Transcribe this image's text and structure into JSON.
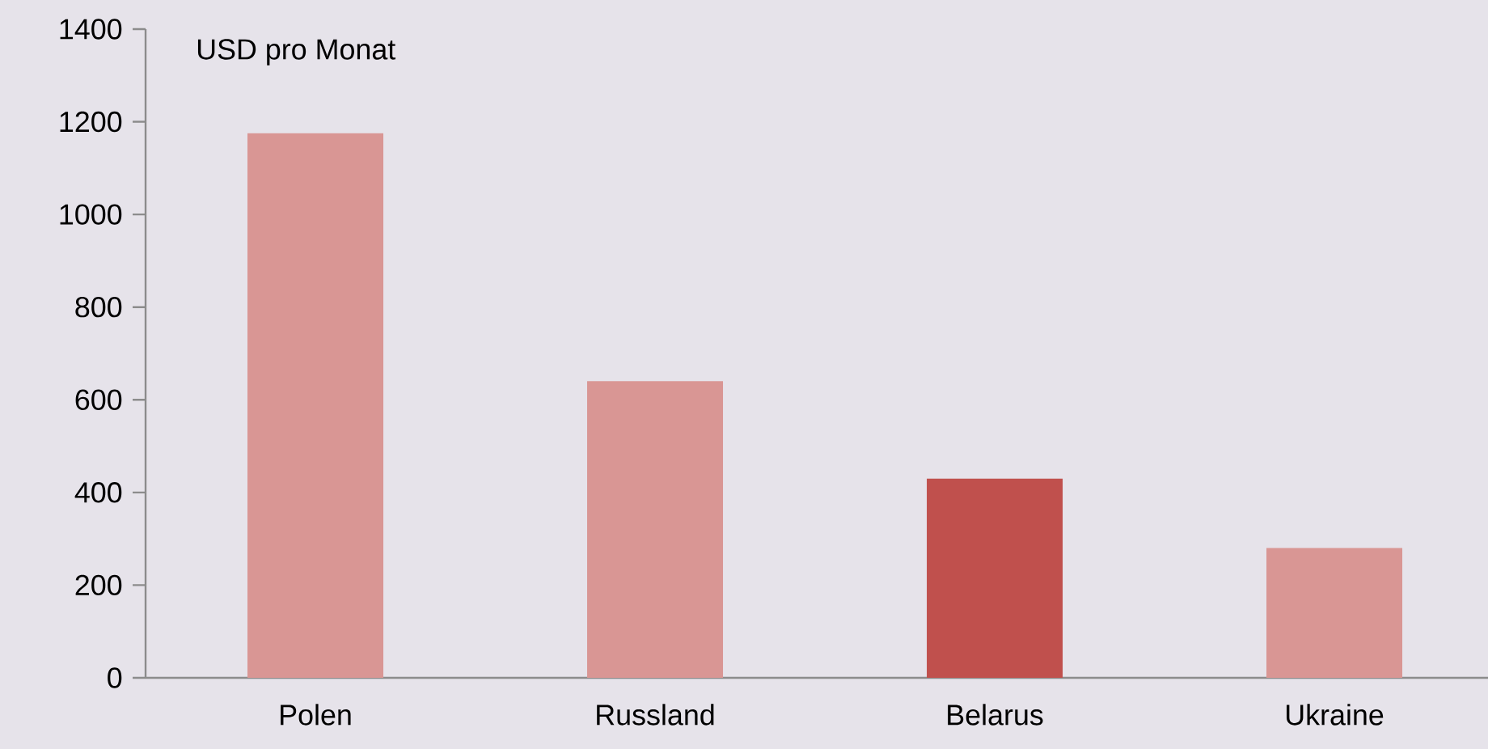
{
  "chart_data": {
    "type": "bar",
    "ylabel": "USD pro Monat",
    "categories": [
      "Polen",
      "Russland",
      "Belarus",
      "Ukraine"
    ],
    "values": [
      1175,
      640,
      430,
      280
    ],
    "colors": [
      "#d99694",
      "#d99694",
      "#c0504d",
      "#d99694"
    ],
    "ylim": [
      0,
      1400
    ],
    "yticks": [
      0,
      200,
      400,
      600,
      800,
      1000,
      1200,
      1400
    ],
    "grid": false
  }
}
